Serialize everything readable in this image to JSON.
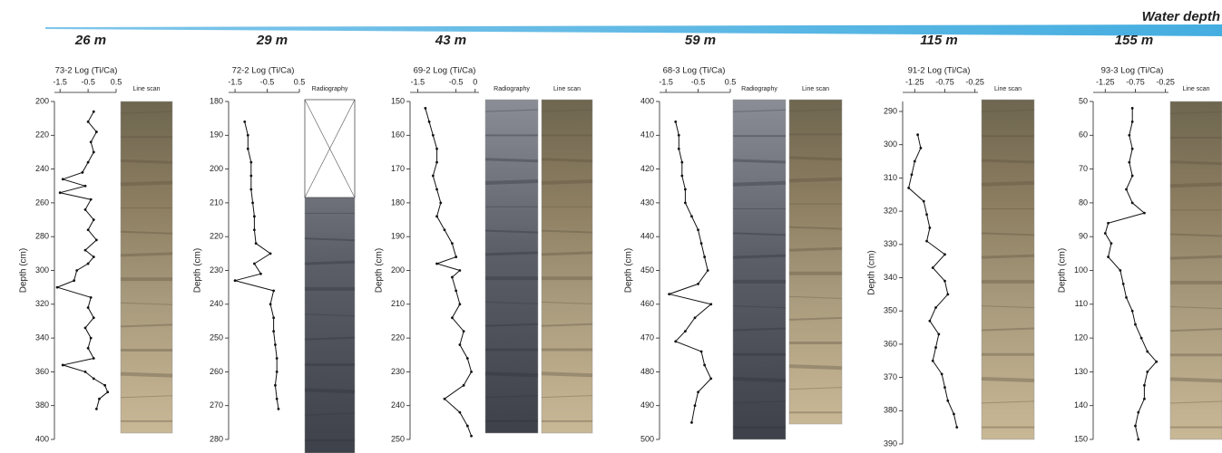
{
  "header": {
    "label": "Water depth",
    "depths": [
      "26 m",
      "29 m",
      "43 m",
      "59 m",
      "115 m",
      "155 m"
    ]
  },
  "chart_data": [
    {
      "type": "line",
      "title": "73-2 Log (Ti/Ca)",
      "y_label": "Depth (cm)",
      "inverted_y": true,
      "xlim": [
        -1.7,
        0.5
      ],
      "xticks": [
        -1.5,
        -0.5,
        0.5
      ],
      "ylim": [
        200,
        400
      ],
      "yticks": [
        200,
        220,
        240,
        260,
        280,
        300,
        320,
        340,
        360,
        380,
        400
      ],
      "strips": [
        "Line scan"
      ],
      "series": [
        {
          "color": "#111111",
          "x": [
            -0.3,
            -0.5,
            -0.2,
            -0.4,
            -0.3,
            -0.5,
            -0.7,
            -1.4,
            -0.6,
            -1.5,
            -0.4,
            -0.6,
            -0.3,
            -0.5,
            -0.2,
            -0.6,
            -0.3,
            -0.5,
            -0.9,
            -1.0,
            -1.6,
            -0.4,
            -0.5,
            -0.3,
            -0.6,
            -0.4,
            -0.5,
            -0.3,
            -1.4,
            -0.6,
            -0.3,
            0.1,
            0.2,
            -0.1,
            -0.2
          ],
          "y": [
            206,
            212,
            218,
            224,
            230,
            236,
            242,
            246,
            250,
            254,
            258,
            264,
            270,
            276,
            282,
            288,
            292,
            296,
            300,
            306,
            310,
            316,
            322,
            328,
            334,
            340,
            346,
            352,
            356,
            360,
            364,
            368,
            372,
            376,
            382
          ]
        }
      ]
    },
    {
      "type": "line",
      "title": "72-2 Log (Ti/Ca)",
      "y_label": "Depth (cm)",
      "inverted_y": true,
      "xlim": [
        -1.7,
        0.5
      ],
      "xticks": [
        -1.5,
        -0.5,
        0.5
      ],
      "ylim": [
        180,
        280
      ],
      "yticks": [
        180,
        190,
        200,
        210,
        220,
        230,
        240,
        250,
        260,
        270,
        280
      ],
      "strips": [
        "Radiography"
      ],
      "series": [
        {
          "color": "#111111",
          "x": [
            -1.2,
            -1.1,
            -1.1,
            -1.0,
            -1.0,
            -1.0,
            -0.95,
            -0.9,
            -0.9,
            -0.85,
            -0.4,
            -0.9,
            -0.7,
            -1.5,
            -0.3,
            -0.4,
            -0.3,
            -0.3,
            -0.25,
            -0.2,
            -0.2,
            -0.25,
            -0.2,
            -0.15
          ],
          "y": [
            186,
            190,
            194,
            198,
            202,
            206,
            210,
            214,
            218,
            222,
            225,
            228,
            231,
            233,
            236,
            240,
            244,
            248,
            252,
            256,
            260,
            264,
            268,
            271
          ]
        }
      ]
    },
    {
      "type": "line",
      "title": "69-2 Log (Ti/Ca)",
      "y_label": "Depth (cm)",
      "inverted_y": true,
      "xlim": [
        -1.7,
        0.1
      ],
      "xticks": [
        -1.5,
        -0.5,
        0
      ],
      "ylim": [
        150,
        250
      ],
      "yticks": [
        150,
        160,
        170,
        180,
        190,
        200,
        210,
        220,
        230,
        240,
        250
      ],
      "strips": [
        "Radiography",
        "Line scan"
      ],
      "series": [
        {
          "color": "#111111",
          "x": [
            -1.3,
            -1.2,
            -1.1,
            -1.0,
            -1.0,
            -1.1,
            -1.0,
            -0.9,
            -1.0,
            -0.8,
            -0.6,
            -0.5,
            -1.0,
            -0.4,
            -0.6,
            -0.5,
            -0.4,
            -0.6,
            -0.3,
            -0.4,
            -0.2,
            -0.1,
            -0.3,
            -0.8,
            -0.4,
            -0.2,
            -0.1
          ],
          "y": [
            152,
            156,
            160,
            164,
            168,
            172,
            176,
            180,
            184,
            188,
            192,
            196,
            198,
            200,
            202,
            206,
            210,
            214,
            218,
            222,
            226,
            230,
            234,
            238,
            242,
            246,
            249
          ]
        }
      ]
    },
    {
      "type": "line",
      "title": "68-3 Log (Ti/Ca)",
      "y_label": "Depth (cm)",
      "inverted_y": true,
      "xlim": [
        -1.7,
        0.5
      ],
      "xticks": [
        -1.5,
        -0.5,
        0.5
      ],
      "ylim": [
        400,
        500
      ],
      "yticks": [
        400,
        410,
        420,
        430,
        440,
        450,
        460,
        470,
        480,
        490,
        500
      ],
      "strips": [
        "Radiography",
        "Line scan"
      ],
      "series": [
        {
          "color": "#111111",
          "x": [
            -1.2,
            -1.1,
            -1.1,
            -1.0,
            -1.0,
            -0.9,
            -0.9,
            -0.7,
            -0.5,
            -0.4,
            -0.3,
            -0.2,
            -0.5,
            -1.4,
            -0.1,
            -0.6,
            -0.9,
            -1.2,
            -0.4,
            -0.3,
            -0.1,
            -0.5,
            -0.6,
            -0.7
          ],
          "y": [
            406,
            410,
            414,
            418,
            422,
            426,
            430,
            434,
            438,
            442,
            446,
            450,
            454,
            457,
            460,
            464,
            468,
            471,
            474,
            478,
            482,
            486,
            490,
            495
          ]
        }
      ]
    },
    {
      "type": "line",
      "title": "91-2 Log (Ti/Ca)",
      "y_label": "Depth (cm)",
      "inverted_y": true,
      "xlim": [
        -1.45,
        -0.2
      ],
      "xticks": [
        -1.25,
        -0.75,
        -0.25
      ],
      "ylim": [
        287,
        390
      ],
      "yticks": [
        290,
        300,
        310,
        320,
        330,
        340,
        350,
        360,
        370,
        380,
        390
      ],
      "strips": [
        "Line scan"
      ],
      "series": [
        {
          "color": "#111111",
          "x": [
            -1.2,
            -1.15,
            -1.25,
            -1.3,
            -1.35,
            -1.1,
            -1.05,
            -1.0,
            -1.05,
            -0.75,
            -0.95,
            -0.75,
            -0.7,
            -0.9,
            -1.0,
            -0.85,
            -0.9,
            -0.95,
            -0.8,
            -0.75,
            -0.7,
            -0.6,
            -0.55
          ],
          "y": [
            297,
            301,
            305,
            309,
            313,
            317,
            321,
            325,
            329,
            333,
            337,
            341,
            345,
            349,
            353,
            357,
            361,
            365,
            369,
            373,
            377,
            381,
            385
          ]
        }
      ]
    },
    {
      "type": "line",
      "title": "93-3 Log (Ti/Ca)",
      "y_label": "Depth (cm)",
      "inverted_y": true,
      "xlim": [
        -1.45,
        -0.2
      ],
      "xticks": [
        -1.25,
        -0.75,
        -0.25
      ],
      "ylim": [
        50,
        150
      ],
      "yticks": [
        50,
        60,
        70,
        80,
        90,
        100,
        110,
        120,
        130,
        140,
        150
      ],
      "strips": [
        "Line scan"
      ],
      "series": [
        {
          "color": "#111111",
          "x": [
            -0.8,
            -0.8,
            -0.85,
            -0.8,
            -0.85,
            -0.8,
            -0.9,
            -0.8,
            -0.6,
            -1.2,
            -1.25,
            -1.15,
            -1.2,
            -1.0,
            -0.95,
            -0.9,
            -0.8,
            -0.75,
            -0.65,
            -0.55,
            -0.4,
            -0.55,
            -0.6,
            -0.6,
            -0.7,
            -0.75,
            -0.7
          ],
          "y": [
            52,
            56,
            60,
            64,
            68,
            72,
            76,
            80,
            83,
            86,
            89,
            92,
            96,
            100,
            104,
            108,
            112,
            116,
            120,
            124,
            127,
            130,
            134,
            138,
            142,
            146,
            150
          ]
        }
      ]
    }
  ]
}
